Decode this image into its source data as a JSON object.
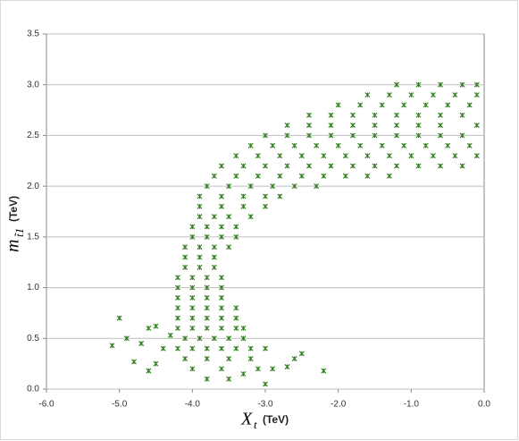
{
  "chart_data": {
    "type": "scatter",
    "xlabel": {
      "symbol": "X",
      "subscript": "t",
      "unit": "(TeV)"
    },
    "ylabel": {
      "symbol": "m",
      "subscript": "t̃1",
      "unit": "(TeV)"
    },
    "color": "#2f7d1c",
    "xlim": [
      -6,
      0
    ],
    "ylim": [
      0,
      3.5
    ],
    "xticks": [
      {
        "value": -6,
        "label": "-6.0"
      },
      {
        "value": -5,
        "label": "-5.0"
      },
      {
        "value": -4,
        "label": "-4.0"
      },
      {
        "value": -3,
        "label": "-3.0"
      },
      {
        "value": -2,
        "label": "-2.0"
      },
      {
        "value": -1,
        "label": "-1.0"
      },
      {
        "value": 0,
        "label": "0.0"
      }
    ],
    "yticks": [
      {
        "value": 0,
        "label": "0.0"
      },
      0.5,
      {
        "value": 1,
        "label": "1.0"
      },
      1.5,
      {
        "value": 2,
        "label": "2.0"
      },
      2.5,
      {
        "value": 3,
        "label": "3.0"
      },
      3.5
    ],
    "grid": true,
    "x": [
      -1.2,
      -0.9,
      -0.6,
      -0.3,
      -0.1,
      -1.6,
      -1.3,
      -1.0,
      -0.7,
      -0.4,
      -0.1,
      -2.0,
      -1.7,
      -1.4,
      -1.1,
      -0.8,
      -0.5,
      -0.2,
      -2.4,
      -2.1,
      -1.8,
      -1.5,
      -1.2,
      -0.9,
      -0.6,
      -0.3,
      -2.7,
      -2.4,
      -2.1,
      -1.8,
      -1.5,
      -1.2,
      -0.9,
      -0.6,
      -0.1,
      -3.0,
      -2.7,
      -2.4,
      -2.1,
      -1.8,
      -1.5,
      -1.2,
      -0.9,
      -0.6,
      -0.3,
      -3.2,
      -2.9,
      -2.6,
      -2.3,
      -2.0,
      -1.7,
      -1.4,
      -1.1,
      -0.8,
      -0.5,
      -0.2,
      -3.4,
      -3.1,
      -2.8,
      -2.5,
      -2.2,
      -1.9,
      -1.6,
      -1.3,
      -1.0,
      -0.7,
      -0.4,
      -0.1,
      -3.6,
      -3.3,
      -3.0,
      -2.7,
      -2.4,
      -2.1,
      -1.8,
      -1.5,
      -1.2,
      -0.9,
      -0.6,
      -0.3,
      -3.7,
      -3.4,
      -3.1,
      -2.8,
      -2.5,
      -2.2,
      -1.9,
      -1.6,
      -1.3,
      -3.8,
      -3.5,
      -3.2,
      -2.9,
      -2.6,
      -2.3,
      -3.9,
      -3.6,
      -3.3,
      -3.0,
      -2.8,
      -3.9,
      -3.6,
      -3.3,
      -3.0,
      -3.9,
      -3.7,
      -3.5,
      -3.2,
      -4.0,
      -3.8,
      -3.6,
      -3.4,
      -4.0,
      -3.8,
      -3.6,
      -3.4,
      -4.1,
      -3.9,
      -3.7,
      -3.5,
      -4.1,
      -3.9,
      -3.7,
      -4.1,
      -3.9,
      -3.7,
      -4.2,
      -4.0,
      -3.8,
      -3.6,
      -4.2,
      -4.0,
      -3.8,
      -3.6,
      -4.2,
      -4.0,
      -3.8,
      -3.6,
      -4.2,
      -4.0,
      -3.8,
      -3.6,
      -3.4,
      -4.2,
      -4.0,
      -3.8,
      -3.6,
      -3.4,
      -4.2,
      -4.0,
      -3.8,
      -3.6,
      -3.4,
      -3.3,
      -4.1,
      -3.9,
      -3.7,
      -3.5,
      -3.3,
      -4.2,
      -4.0,
      -3.8,
      -3.6,
      -3.4,
      -3.2,
      -3.0,
      -4.1,
      -3.8,
      -3.5,
      -3.2,
      -4.0,
      -3.6,
      -3.1,
      -5.0,
      -5.1,
      -4.9,
      -4.8,
      -4.7,
      -4.6,
      -4.5,
      -4.4,
      -4.5,
      -4.3,
      -4.6,
      -3.0,
      -2.9,
      -2.6,
      -2.7,
      -2.5,
      -2.2,
      -3.3,
      -3.8,
      -3.5
    ],
    "values": [
      3.0,
      3.0,
      3.0,
      3.0,
      3.0,
      2.9,
      2.9,
      2.9,
      2.9,
      2.9,
      2.9,
      2.8,
      2.8,
      2.8,
      2.8,
      2.8,
      2.8,
      2.8,
      2.7,
      2.7,
      2.7,
      2.7,
      2.7,
      2.7,
      2.7,
      2.7,
      2.6,
      2.6,
      2.6,
      2.6,
      2.6,
      2.6,
      2.6,
      2.6,
      2.6,
      2.5,
      2.5,
      2.5,
      2.5,
      2.5,
      2.5,
      2.5,
      2.5,
      2.5,
      2.5,
      2.4,
      2.4,
      2.4,
      2.4,
      2.4,
      2.4,
      2.4,
      2.4,
      2.4,
      2.4,
      2.4,
      2.3,
      2.3,
      2.3,
      2.3,
      2.3,
      2.3,
      2.3,
      2.3,
      2.3,
      2.3,
      2.3,
      2.3,
      2.2,
      2.2,
      2.2,
      2.2,
      2.2,
      2.2,
      2.2,
      2.2,
      2.2,
      2.2,
      2.2,
      2.2,
      2.1,
      2.1,
      2.1,
      2.1,
      2.1,
      2.1,
      2.1,
      2.1,
      2.1,
      2.0,
      2.0,
      2.0,
      2.0,
      2.0,
      2.0,
      1.9,
      1.9,
      1.9,
      1.9,
      1.9,
      1.8,
      1.8,
      1.8,
      1.8,
      1.7,
      1.7,
      1.7,
      1.7,
      1.6,
      1.6,
      1.6,
      1.6,
      1.5,
      1.5,
      1.5,
      1.5,
      1.4,
      1.4,
      1.4,
      1.4,
      1.3,
      1.3,
      1.3,
      1.2,
      1.2,
      1.2,
      1.1,
      1.1,
      1.1,
      1.1,
      1.0,
      1.0,
      1.0,
      1.0,
      0.9,
      0.9,
      0.9,
      0.9,
      0.8,
      0.8,
      0.8,
      0.8,
      0.8,
      0.7,
      0.7,
      0.7,
      0.7,
      0.7,
      0.6,
      0.6,
      0.6,
      0.6,
      0.6,
      0.6,
      0.5,
      0.5,
      0.5,
      0.5,
      0.5,
      0.4,
      0.4,
      0.4,
      0.4,
      0.4,
      0.4,
      0.4,
      0.3,
      0.3,
      0.3,
      0.3,
      0.2,
      0.2,
      0.2,
      0.7,
      0.43,
      0.5,
      0.27,
      0.45,
      0.6,
      0.62,
      0.4,
      0.25,
      0.53,
      0.18,
      0.05,
      0.2,
      0.3,
      0.22,
      0.35,
      0.18,
      0.15,
      0.1,
      0.1
    ]
  }
}
